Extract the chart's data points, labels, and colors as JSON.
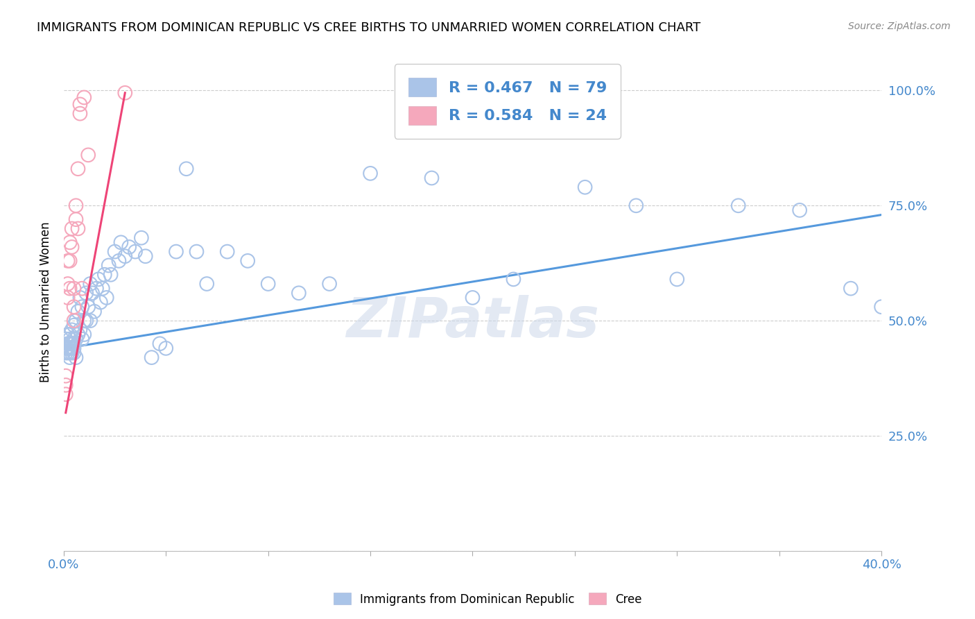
{
  "title": "IMMIGRANTS FROM DOMINICAN REPUBLIC VS CREE BIRTHS TO UNMARRIED WOMEN CORRELATION CHART",
  "source": "Source: ZipAtlas.com",
  "ylabel": "Births to Unmarried Women",
  "legend_label1": "Immigrants from Dominican Republic",
  "legend_label2": "Cree",
  "R1": 0.467,
  "N1": 79,
  "R2": 0.584,
  "N2": 24,
  "blue_color": "#aac4e8",
  "pink_color": "#f5a8bc",
  "blue_line_color": "#5599dd",
  "pink_line_color": "#ee4477",
  "text_color": "#4488cc",
  "watermark": "ZIPatlas",
  "blue_scatter_x": [
    0.001,
    0.001,
    0.001,
    0.002,
    0.002,
    0.002,
    0.002,
    0.003,
    0.003,
    0.003,
    0.003,
    0.003,
    0.003,
    0.004,
    0.004,
    0.004,
    0.004,
    0.005,
    0.005,
    0.005,
    0.005,
    0.005,
    0.006,
    0.006,
    0.006,
    0.007,
    0.007,
    0.008,
    0.008,
    0.009,
    0.009,
    0.01,
    0.01,
    0.011,
    0.011,
    0.012,
    0.013,
    0.013,
    0.014,
    0.015,
    0.016,
    0.017,
    0.018,
    0.019,
    0.02,
    0.021,
    0.022,
    0.023,
    0.025,
    0.027,
    0.028,
    0.03,
    0.032,
    0.035,
    0.038,
    0.04,
    0.043,
    0.047,
    0.05,
    0.055,
    0.06,
    0.065,
    0.07,
    0.08,
    0.09,
    0.1,
    0.115,
    0.13,
    0.15,
    0.18,
    0.2,
    0.22,
    0.255,
    0.28,
    0.3,
    0.33,
    0.36,
    0.385,
    0.4
  ],
  "blue_scatter_y": [
    0.44,
    0.46,
    0.43,
    0.47,
    0.45,
    0.44,
    0.43,
    0.46,
    0.45,
    0.44,
    0.47,
    0.43,
    0.42,
    0.48,
    0.45,
    0.44,
    0.43,
    0.49,
    0.46,
    0.45,
    0.44,
    0.43,
    0.5,
    0.46,
    0.42,
    0.52,
    0.47,
    0.55,
    0.48,
    0.53,
    0.46,
    0.5,
    0.47,
    0.56,
    0.5,
    0.53,
    0.58,
    0.5,
    0.56,
    0.52,
    0.57,
    0.59,
    0.54,
    0.57,
    0.6,
    0.55,
    0.62,
    0.6,
    0.65,
    0.63,
    0.67,
    0.64,
    0.66,
    0.65,
    0.68,
    0.64,
    0.42,
    0.45,
    0.44,
    0.65,
    0.83,
    0.65,
    0.58,
    0.65,
    0.63,
    0.58,
    0.56,
    0.58,
    0.82,
    0.81,
    0.55,
    0.59,
    0.79,
    0.75,
    0.59,
    0.75,
    0.74,
    0.57,
    0.53
  ],
  "pink_scatter_x": [
    0.001,
    0.001,
    0.001,
    0.002,
    0.002,
    0.002,
    0.003,
    0.003,
    0.003,
    0.004,
    0.004,
    0.005,
    0.005,
    0.005,
    0.006,
    0.006,
    0.007,
    0.007,
    0.008,
    0.008,
    0.009,
    0.01,
    0.012,
    0.03
  ],
  "pink_scatter_y": [
    0.38,
    0.36,
    0.34,
    0.63,
    0.58,
    0.55,
    0.67,
    0.63,
    0.57,
    0.7,
    0.66,
    0.57,
    0.53,
    0.5,
    0.75,
    0.72,
    0.83,
    0.7,
    0.95,
    0.97,
    0.57,
    0.985,
    0.86,
    0.995
  ],
  "xlim": [
    0.0,
    0.4
  ],
  "ylim": [
    0.0,
    1.08
  ],
  "blue_line_x": [
    0.001,
    0.4
  ],
  "blue_line_y": [
    0.44,
    0.73
  ],
  "pink_line_x": [
    0.001,
    0.03
  ],
  "pink_line_y": [
    0.3,
    0.995
  ]
}
